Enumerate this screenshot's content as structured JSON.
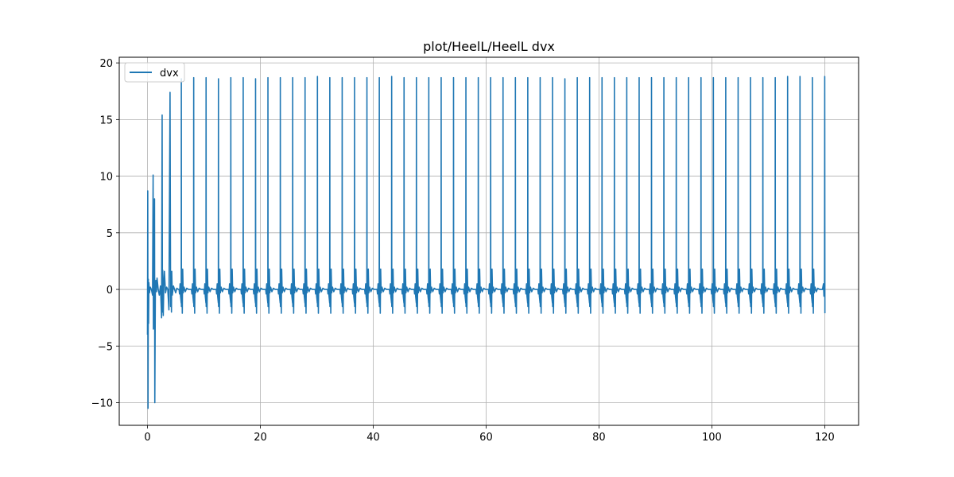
{
  "chart_data": {
    "type": "line",
    "title": "plot/HeelL/HeelL dvx",
    "xlabel": "",
    "ylabel": "",
    "xlim": [
      -5,
      126
    ],
    "ylim": [
      -12,
      20.5
    ],
    "xticks": [
      0,
      20,
      40,
      60,
      80,
      100,
      120
    ],
    "yticks": [
      -10,
      -5,
      0,
      5,
      10,
      15,
      20
    ],
    "xtick_labels": [
      "0",
      "20",
      "40",
      "60",
      "80",
      "100",
      "120"
    ],
    "ytick_labels": [
      "−10",
      "−5",
      "0",
      "5",
      "10",
      "15",
      "20"
    ],
    "grid": true,
    "legend_position": "upper-left",
    "series": [
      {
        "name": "dvx",
        "color": "#1f77b4",
        "startup_x": [
          0.0,
          0.05,
          0.1,
          0.15,
          0.2,
          0.25,
          0.35,
          0.5,
          0.7,
          0.9,
          1.0,
          1.05,
          1.1,
          1.2,
          1.25,
          1.3,
          1.4,
          1.5,
          1.6,
          1.7,
          1.9,
          2.1,
          2.3,
          2.5,
          2.6,
          2.65,
          2.7,
          2.8,
          2.9,
          3.0,
          3.2,
          3.4,
          3.6,
          3.8,
          4.0,
          4.1,
          4.2,
          4.25,
          4.3,
          4.4,
          4.6,
          4.8,
          5.0,
          5.2,
          5.5
        ],
        "startup_y": [
          -4.0,
          8.7,
          -10.5,
          0.9,
          -3.0,
          0.6,
          -0.3,
          0.2,
          0.0,
          -0.5,
          10.1,
          -3.5,
          0.5,
          -0.6,
          8.0,
          -10.0,
          0.3,
          0.8,
          -0.2,
          1.0,
          0.0,
          -0.5,
          0.3,
          -2.5,
          15.4,
          -2.0,
          1.7,
          -2.3,
          0.5,
          1.6,
          -0.3,
          0.2,
          0.0,
          -1.8,
          17.4,
          -1.5,
          1.0,
          -2.0,
          1.6,
          -0.5,
          0.3,
          0.0,
          -0.3,
          0.1,
          0.0
        ],
        "cycle_start": 6.0,
        "cycle_end": 120.0,
        "cycle_count": 53,
        "cycle_period": 2.15,
        "peak_values": [
          18.6,
          18.7,
          18.7,
          18.6,
          18.7,
          18.7,
          18.6,
          18.7,
          18.7,
          18.7,
          18.7,
          18.8,
          18.7,
          18.7,
          18.7,
          18.7,
          18.7,
          18.8,
          18.7,
          18.7,
          18.7,
          18.7,
          18.7,
          18.7,
          18.7,
          18.7,
          18.7,
          18.7,
          18.7,
          18.7,
          18.7,
          18.6,
          18.7,
          18.7,
          18.7,
          18.7,
          18.7,
          18.7,
          18.7,
          18.7,
          18.7,
          18.7,
          18.7,
          18.7,
          18.7,
          18.7,
          18.7,
          18.7,
          18.7,
          18.8,
          18.8,
          18.7,
          18.8
        ],
        "cycle_min": -2.1,
        "secondary_peak": 1.8,
        "final_value": -2.1
      }
    ]
  }
}
